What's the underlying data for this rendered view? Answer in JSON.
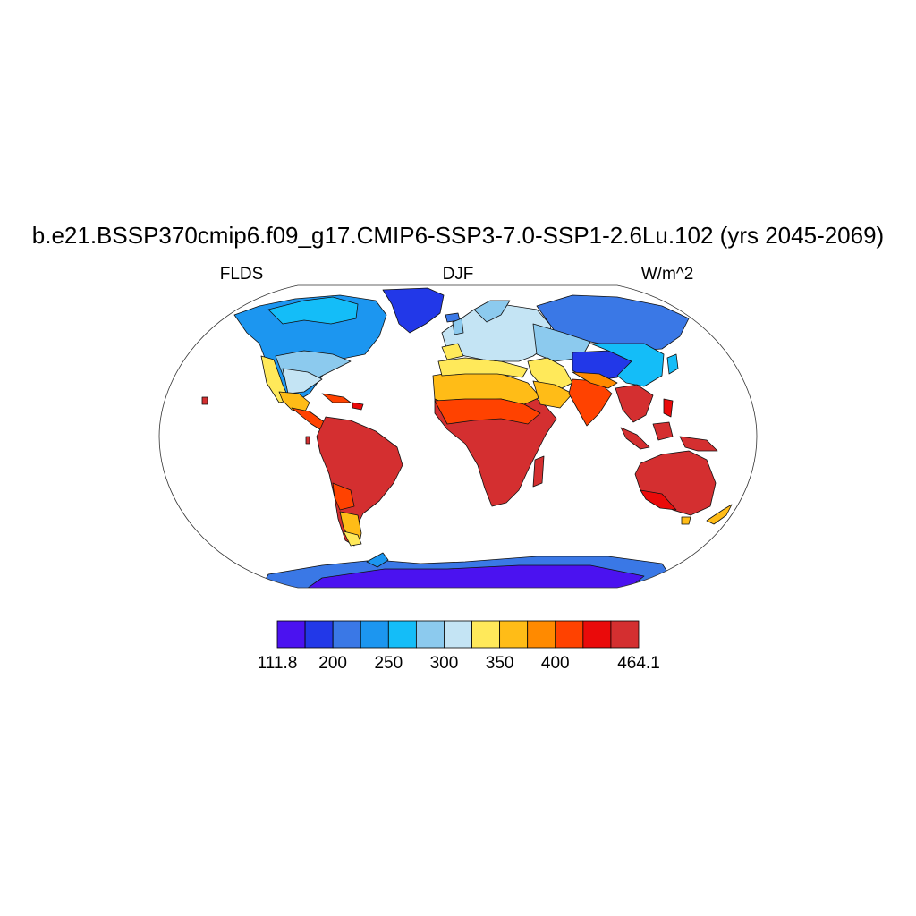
{
  "title": "b.e21.BSSP370cmip6.f09_g17.CMIP6-SSP3-7.0-SSP1-2.6Lu.102 (yrs 2045-2069)",
  "left_label": "FLDS",
  "center_label": "DJF",
  "right_label": "W/m^2",
  "colorbar": {
    "colors": [
      "#4b12f0",
      "#2238e8",
      "#3a78e6",
      "#1c96f0",
      "#14bdf8",
      "#8ccaee",
      "#c4e4f4",
      "#ffe95a",
      "#ffbc17",
      "#ff8a00",
      "#ff4200",
      "#ea0a0a",
      "#d42f30"
    ],
    "labels": [
      {
        "text": "111.8",
        "index": 0
      },
      {
        "text": "200",
        "index": 2
      },
      {
        "text": "250",
        "index": 4
      },
      {
        "text": "300",
        "index": 6
      },
      {
        "text": "350",
        "index": 8
      },
      {
        "text": "400",
        "index": 10
      },
      {
        "text": "464.1",
        "index": 13
      }
    ]
  }
}
